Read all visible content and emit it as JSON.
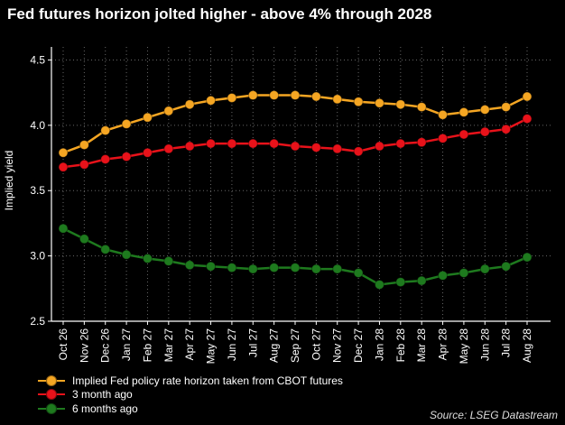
{
  "chart_data": {
    "type": "line",
    "title": "Fed futures horizon jolted higher - above 4% through 2028",
    "ylabel": "Implied yield",
    "xlabel": "",
    "ylim": [
      2.5,
      4.6
    ],
    "yticks": [
      "2.5",
      "3.0",
      "3.5",
      "4.0",
      "4.5"
    ],
    "grid": true,
    "legend_position": "bottom-left",
    "categories": [
      "Oct 26",
      "Nov 26",
      "Dec 26",
      "Jan 27",
      "Feb 27",
      "Mar 27",
      "Apr 27",
      "May 27",
      "Jun 27",
      "Jul 27",
      "Aug 27",
      "Sep 27",
      "Oct 27",
      "Nov 27",
      "Dec 27",
      "Jan 28",
      "Feb 28",
      "Mar 28",
      "Apr 28",
      "May 28",
      "Jun 28",
      "Jul 28",
      "Aug 28"
    ],
    "series": [
      {
        "name": "Implied Fed policy rate horizon taken from CBOT futures",
        "color": "#f5a623",
        "values": [
          3.79,
          3.85,
          3.96,
          4.01,
          4.06,
          4.11,
          4.16,
          4.19,
          4.21,
          4.23,
          4.23,
          4.23,
          4.22,
          4.2,
          4.18,
          4.17,
          4.16,
          4.14,
          4.08,
          4.1,
          4.12,
          4.14,
          4.22
        ]
      },
      {
        "name": "3 month ago",
        "color": "#e8121a",
        "values": [
          3.68,
          3.7,
          3.74,
          3.76,
          3.79,
          3.82,
          3.84,
          3.86,
          3.86,
          3.86,
          3.86,
          3.84,
          3.83,
          3.82,
          3.8,
          3.84,
          3.86,
          3.87,
          3.9,
          3.93,
          3.95,
          3.97,
          4.05
        ]
      },
      {
        "name": "6 months ago",
        "color": "#1e7a1e",
        "values": [
          3.21,
          3.13,
          3.05,
          3.01,
          2.98,
          2.96,
          2.93,
          2.92,
          2.91,
          2.9,
          2.91,
          2.91,
          2.9,
          2.9,
          2.87,
          2.78,
          2.8,
          2.81,
          2.85,
          2.87,
          2.9,
          2.92,
          2.99
        ]
      }
    ]
  },
  "source": "Source: LSEG Datastream"
}
